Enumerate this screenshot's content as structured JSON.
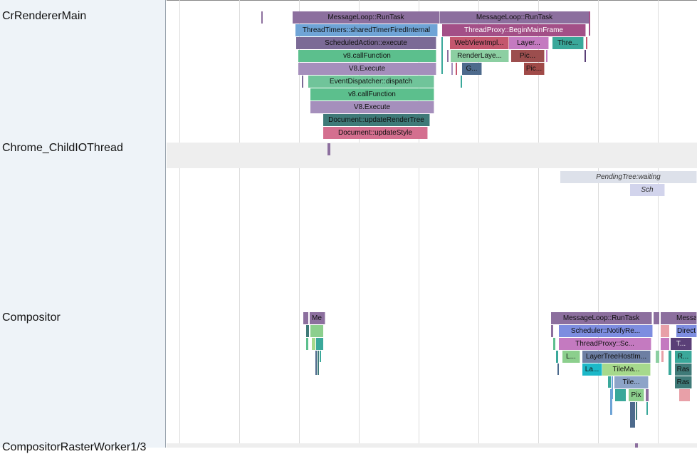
{
  "tracks": [
    {
      "label": "CrRendererMain"
    },
    {
      "label": "Chrome_ChildIOThread"
    },
    {
      "label": "Compositor"
    },
    {
      "label": "CompositorRasterWorker1/3"
    }
  ],
  "slices": [
    {
      "text": "MessageLoop::RunTask",
      "color": "#8c6f9e"
    },
    {
      "text": "MessageLoop::RunTask",
      "color": "#8c6f9e"
    },
    {
      "text": "ThreadTimers::sharedTimerFiredInternal",
      "color": "#6fa4d6"
    },
    {
      "text": "ThreadProxy::BeginMainFrame",
      "color": "#a34f87"
    },
    {
      "text": "ScheduledAction::execute",
      "color": "#7b6a96"
    },
    {
      "text": "WebViewImpl...",
      "color": "#c4566e"
    },
    {
      "text": "Layer...",
      "color": "#c47ac0"
    },
    {
      "text": "Thre...",
      "color": "#3aa89a"
    },
    {
      "text": "v8.callFunction",
      "color": "#5cbf8d"
    },
    {
      "text": "RenderLaye...",
      "color": "#8ccfa2"
    },
    {
      "text": "Pic...",
      "color": "#9c4e4e"
    },
    {
      "text": "V8.Execute",
      "color": "#a58fbc"
    },
    {
      "text": "G...",
      "color": "#4d6a8c"
    },
    {
      "text": "Pic...",
      "color": "#a04a48"
    },
    {
      "text": "EventDispatcher::dispatch",
      "color": "#70c49a"
    },
    {
      "text": "v8.callFunction",
      "color": "#5cbf8d"
    },
    {
      "text": "V8.Execute",
      "color": "#a58fbc"
    },
    {
      "text": "Document::updateRenderTree",
      "color": "#3f7a78"
    },
    {
      "text": "Document::updateStyle",
      "color": "#d46f8f"
    },
    {
      "text": "PendingTree:waiting",
      "color": "#dde1ea"
    },
    {
      "text": "Sch",
      "color": "#d2d4ec"
    },
    {
      "text": "Me",
      "color": "#8c6f9e"
    },
    {
      "text": "MessageLoop::RunTask",
      "color": "#8c6f9e"
    },
    {
      "text": "Messa",
      "color": "#8c6f9e"
    },
    {
      "text": "Scheduler::NotifyRe...",
      "color": "#7d8de0"
    },
    {
      "text": "Direct",
      "color": "#7d8de0"
    },
    {
      "text": "ThreadProxy::Sc...",
      "color": "#c47ac0"
    },
    {
      "text": "T...",
      "color": "#5a3f77"
    },
    {
      "text": "L...",
      "color": "#8ccf8d"
    },
    {
      "text": "LayerTreeHostIm...",
      "color": "#6d7fa3"
    },
    {
      "text": "R...",
      "color": "#3aa89a"
    },
    {
      "text": "La...",
      "color": "#1cb8c8"
    },
    {
      "text": "TileMa...",
      "color": "#a6d98c"
    },
    {
      "text": "Ras",
      "color": "#3f7a78"
    },
    {
      "text": "Tile...",
      "color": "#8da4c8"
    },
    {
      "text": "Ras",
      "color": "#3f7a78"
    },
    {
      "text": "Pix",
      "color": "#8ccf8d"
    }
  ]
}
